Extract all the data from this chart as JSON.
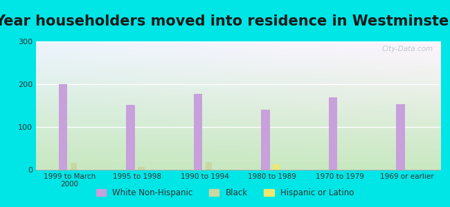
{
  "title": "Year householders moved into residence in Westminster",
  "categories": [
    "1999 to March\n2000",
    "1995 to 1998",
    "1990 to 1994",
    "1980 to 1989",
    "1970 to 1979",
    "1969 or earlier"
  ],
  "white_non_hispanic": [
    200,
    152,
    178,
    140,
    170,
    153
  ],
  "black": [
    16,
    7,
    18,
    0,
    0,
    0
  ],
  "hispanic_or_latino": [
    0,
    0,
    0,
    13,
    0,
    0
  ],
  "white_bar_width": 0.13,
  "small_bar_width": 0.1,
  "ylim": [
    0,
    300
  ],
  "yticks": [
    0,
    100,
    200,
    300
  ],
  "white_color": "#c8a0dc",
  "black_color": "#c8d8a0",
  "hispanic_color": "#ece870",
  "outer_bg": "#00e5e5",
  "title_fontsize": 15,
  "watermark": "City-Data.com"
}
